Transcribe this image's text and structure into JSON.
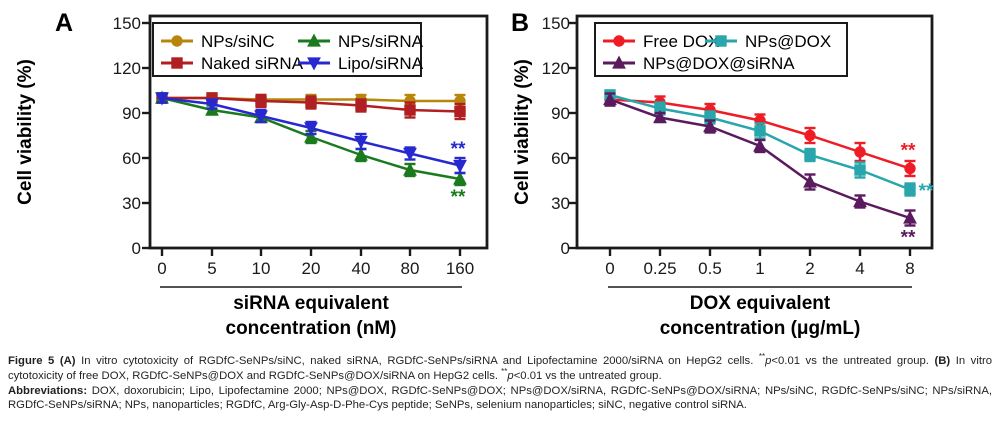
{
  "figure_caption": {
    "paragraphs": [
      {
        "runs": [
          {
            "text": "Figure 5 (A) ",
            "bold": true
          },
          {
            "text": "In vitro cytotoxicity of RGDfC-SeNPs/siNC, naked siRNA, RGDfC-SeNPs/siRNA and Lipofectamine 2000/siRNA on HepG2 cells. "
          },
          {
            "text": "**",
            "sup": true
          },
          {
            "text": "p",
            "italic": true
          },
          {
            "text": "<0.01 vs the untreated group. "
          },
          {
            "text": "(B) ",
            "bold": true
          },
          {
            "text": "In vitro cytotoxicity of free DOX, RGDfC-SeNPs@DOX and RGDfC-SeNPs@DOX/siRNA on HepG2 cells. "
          },
          {
            "text": "**",
            "sup": true
          },
          {
            "text": "p",
            "italic": true
          },
          {
            "text": "<0.01 vs the untreated group."
          }
        ]
      },
      {
        "runs": [
          {
            "text": "Abbreviations: ",
            "bold": true
          },
          {
            "text": "DOX, doxorubicin; Lipo, Lipofectamine 2000; NPs@DOX, RGDfC-SeNPs@DOX; NPs@DOX/siRNA, RGDfC-SeNPs@DOX/siRNA; NPs/siNC, RGDfC-SeNPs/siNC; NPs/siRNA, RGDfC-SeNPs/siRNA; NPs, nanoparticles; RGDfC, Arg-Gly-Asp-D-Phe-Cys peptide; SeNPs, selenium nanoparticles; siNC, negative control siRNA."
          }
        ]
      }
    ]
  },
  "colors": {
    "axis": "#1a1a1a",
    "caption_text": "#231f20",
    "nps_sinc": "#b8860b",
    "naked_sirna": "#b02023",
    "nps_sirna": "#1b7a1e",
    "lipo_sirna": "#2828d0",
    "free_dox": "#ee1c25",
    "nps_dox": "#29a6ab",
    "nps_dox_sirna": "#5b1a5e"
  },
  "chart_data": [
    {
      "type": "line",
      "panel_label": "A",
      "ylabel": "Cell viability (%)",
      "xlabel_lines": [
        "siRNA equivalent",
        "concentration (nM)"
      ],
      "categories": [
        "0",
        "5",
        "10",
        "20",
        "40",
        "80",
        "160"
      ],
      "yticks": [
        "0",
        "30",
        "60",
        "90",
        "120",
        "150"
      ],
      "ylim": [
        0,
        150
      ],
      "grid": false,
      "legend_position": "top-inside",
      "series": [
        {
          "name": "NPs/siNC",
          "marker": "circle",
          "color": "#b8860b",
          "legend_col": 0,
          "legend_row": 0,
          "values": [
            100,
            100,
            99,
            99,
            99,
            98,
            98
          ],
          "errors": [
            3,
            3,
            3,
            3,
            3,
            4,
            4
          ]
        },
        {
          "name": "Naked siRNA",
          "marker": "square",
          "color": "#b02023",
          "legend_col": 0,
          "legend_row": 1,
          "values": [
            100,
            100,
            98,
            97,
            95,
            92,
            91
          ],
          "errors": [
            3,
            3,
            4,
            4,
            4,
            5,
            5
          ]
        },
        {
          "name": "NPs/siRNA",
          "marker": "triangle-up",
          "color": "#1b7a1e",
          "legend_col": 1,
          "legend_row": 0,
          "values": [
            100,
            92,
            87,
            74,
            62,
            52,
            46
          ],
          "errors": [
            3,
            3,
            3,
            4,
            4,
            4,
            4
          ]
        },
        {
          "name": "Lipo/siRNA",
          "marker": "triangle-down",
          "color": "#2828d0",
          "legend_col": 1,
          "legend_row": 1,
          "values": [
            100,
            96,
            88,
            80,
            71,
            63,
            55
          ],
          "errors": [
            3,
            3,
            4,
            4,
            5,
            4,
            5
          ]
        }
      ],
      "annotations": [
        {
          "text": "**",
          "color": "#2828d0",
          "x_index": 6,
          "value": 66,
          "dx": -2
        },
        {
          "text": "**",
          "color": "#1b7a1e",
          "x_index": 6,
          "value": 34,
          "dx": -2
        }
      ]
    },
    {
      "type": "line",
      "panel_label": "B",
      "ylabel": "Cell viability (%)",
      "xlabel_lines": [
        "DOX equivalent",
        "concentration (μg/mL)"
      ],
      "categories": [
        "0",
        "0.25",
        "0.5",
        "1",
        "2",
        "4",
        "8"
      ],
      "yticks": [
        "0",
        "30",
        "60",
        "90",
        "120",
        "150"
      ],
      "ylim": [
        0,
        150
      ],
      "grid": false,
      "legend_position": "top-inside",
      "series": [
        {
          "name": "Free DOX",
          "marker": "circle",
          "color": "#ee1c25",
          "legend_col": 0,
          "legend_row": 0,
          "values": [
            99,
            97,
            92,
            85,
            75,
            64,
            53
          ],
          "errors": [
            4,
            4,
            4,
            4,
            5,
            6,
            5
          ]
        },
        {
          "name": "NPs@DOX",
          "marker": "square",
          "color": "#29a6ab",
          "legend_col": 1,
          "legend_row": 0,
          "values": [
            102,
            93,
            87,
            78,
            62,
            52,
            39
          ],
          "errors": [
            3,
            4,
            4,
            5,
            4,
            5,
            4
          ]
        },
        {
          "name": "NPs@DOX@siRNA",
          "marker": "triangle-up",
          "color": "#5b1a5e",
          "legend_col": 0,
          "legend_row": 1,
          "values": [
            99,
            87,
            81,
            68,
            44,
            31,
            20
          ],
          "errors": [
            4,
            3,
            4,
            4,
            5,
            4,
            5
          ]
        }
      ],
      "annotations": [
        {
          "text": "**",
          "color": "#ee1c25",
          "x_index": 6,
          "value": 65,
          "dx": -2
        },
        {
          "text": "**",
          "color": "#29a6ab",
          "x_index": 6,
          "value": 38,
          "dx": 16
        },
        {
          "text": "**",
          "color": "#5b1a5e",
          "x_index": 6,
          "value": 7,
          "dx": -2
        }
      ]
    }
  ]
}
